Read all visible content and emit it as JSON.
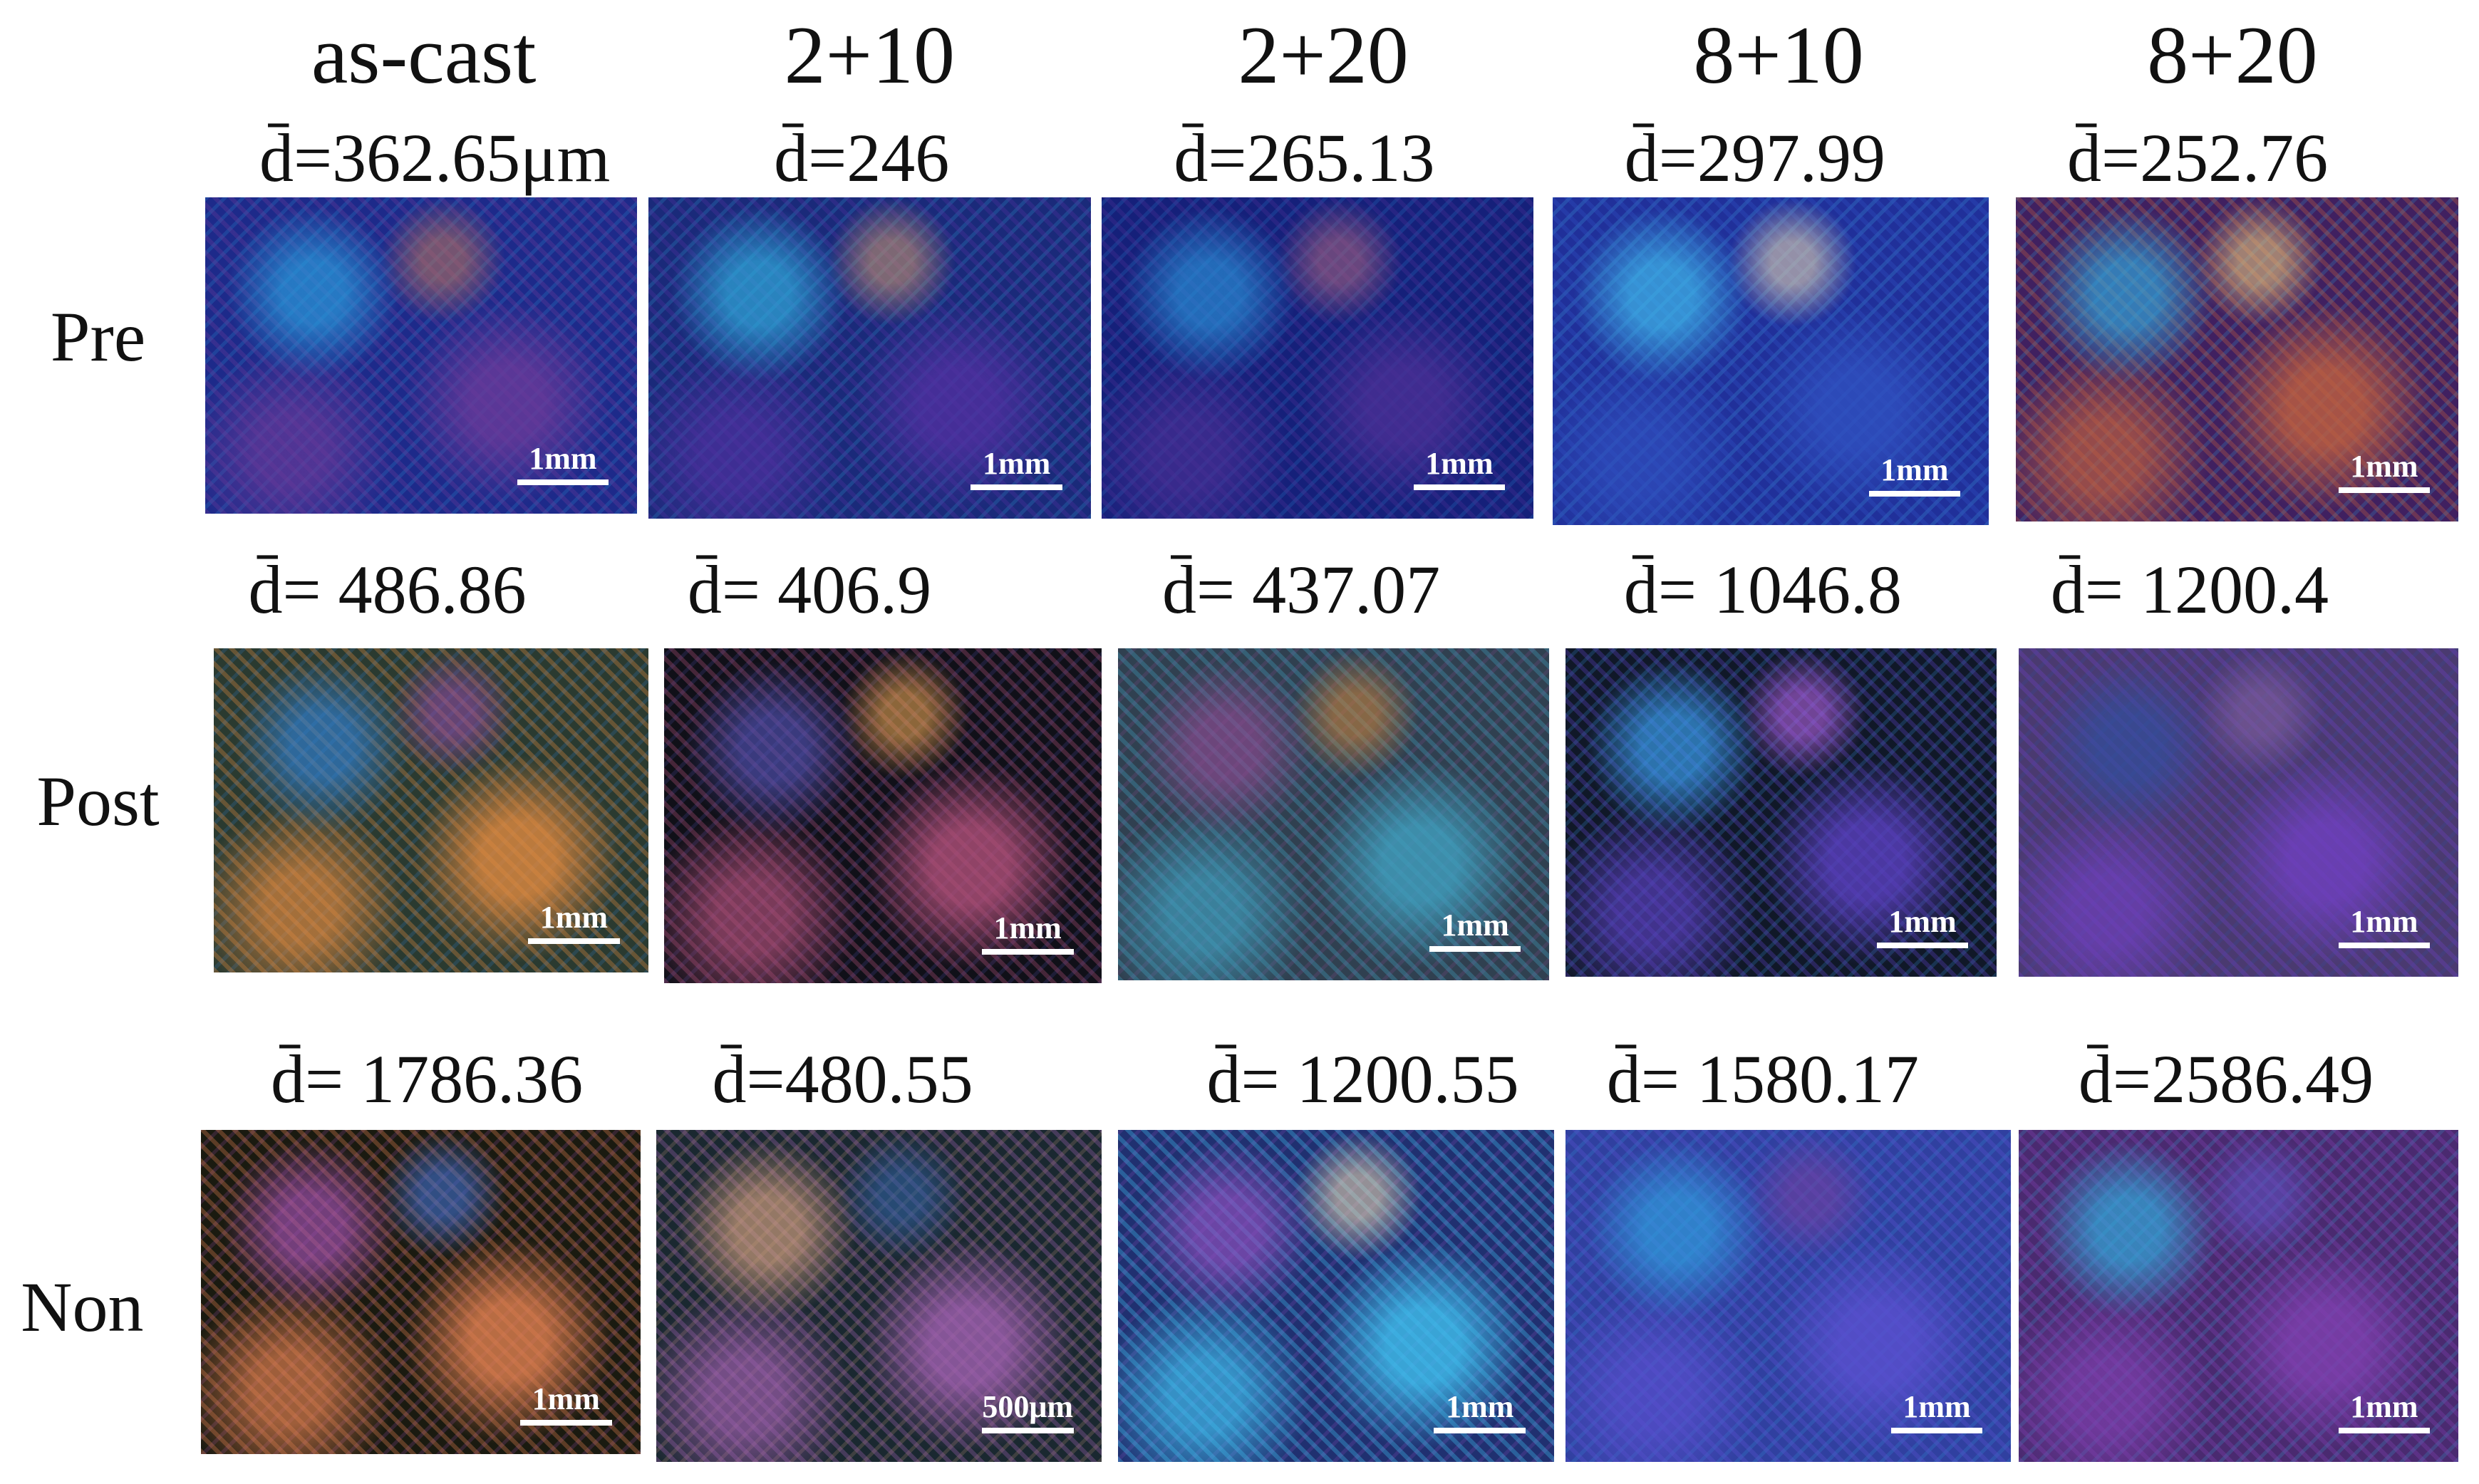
{
  "columns": [
    "as-cast",
    "2+10",
    "2+20",
    "8+10",
    "8+20"
  ],
  "rows": [
    {
      "label": "Pre",
      "cells": [
        {
          "d": "d̄=362.65μm",
          "scale": "1mm"
        },
        {
          "d": "d̄=246",
          "scale": "1mm"
        },
        {
          "d": "d̄=265.13",
          "scale": "1mm"
        },
        {
          "d": "d̄=297.99",
          "scale": "1mm"
        },
        {
          "d": "d̄=252.76",
          "scale": "1mm"
        }
      ]
    },
    {
      "label": "Post",
      "cells": [
        {
          "d": "d̄= 486.86",
          "scale": "1mm"
        },
        {
          "d": "d̄= 406.9",
          "scale": "1mm"
        },
        {
          "d": "d̄= 437.07",
          "scale": "1mm"
        },
        {
          "d": "d̄= 1046.8",
          "scale": "1mm"
        },
        {
          "d": "d̄= 1200.4",
          "scale": "1mm"
        }
      ]
    },
    {
      "label": "Non",
      "cells": [
        {
          "d": "d̄= 1786.36",
          "scale": "1mm"
        },
        {
          "d": "d̄=480.55",
          "scale": "500μm"
        },
        {
          "d": "d̄= 1200.55",
          "scale": "1mm"
        },
        {
          "d": "d̄= 1580.17",
          "scale": "1mm"
        },
        {
          "d": "d̄=2586.49",
          "scale": "1mm"
        }
      ]
    }
  ]
}
